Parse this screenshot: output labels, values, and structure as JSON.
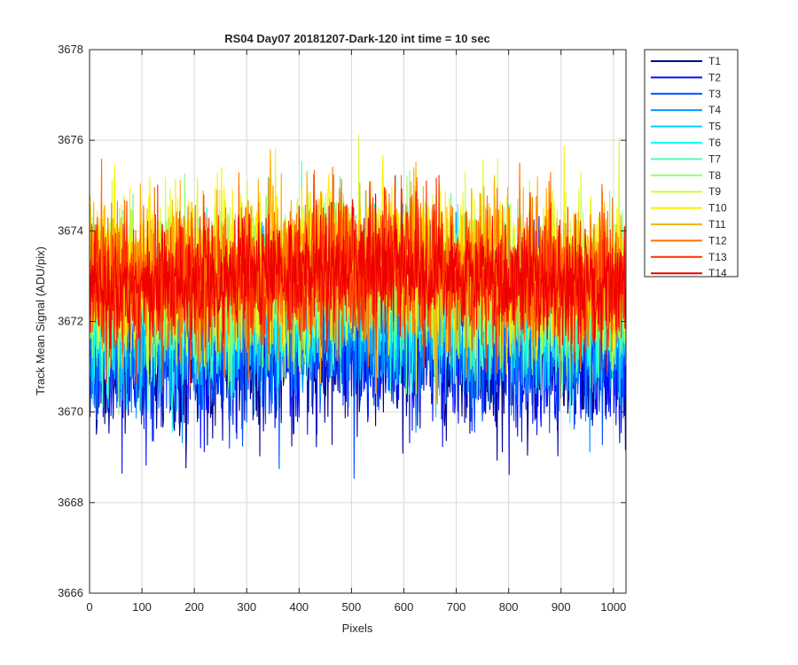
{
  "chart_data": {
    "type": "line",
    "title": "RS04 Day07 20181207-Dark-120 int time = 10 sec",
    "xlabel": "Pixels",
    "ylabel": "Track Mean Signal (ADU/pix)",
    "xlim": [
      0,
      1024
    ],
    "ylim": [
      3666,
      3678
    ],
    "xticks": [
      0,
      100,
      200,
      300,
      400,
      500,
      600,
      700,
      800,
      900,
      1000
    ],
    "yticks": [
      3666,
      3668,
      3670,
      3672,
      3674,
      3676,
      3678
    ],
    "grid": true,
    "legend_position": "outside-top-right",
    "series": [
      {
        "name": "T1",
        "color": "#00008f",
        "mean": 3671.0,
        "noise": 0.8
      },
      {
        "name": "T2",
        "color": "#0010ff",
        "mean": 3671.2,
        "noise": 0.8
      },
      {
        "name": "T3",
        "color": "#0050ff",
        "mean": 3671.4,
        "noise": 0.8
      },
      {
        "name": "T4",
        "color": "#0090ff",
        "mean": 3671.7,
        "noise": 0.8
      },
      {
        "name": "T5",
        "color": "#00d0ff",
        "mean": 3672.0,
        "noise": 0.8
      },
      {
        "name": "T6",
        "color": "#10ffef",
        "mean": 3672.2,
        "noise": 0.8
      },
      {
        "name": "T7",
        "color": "#50ffaf",
        "mean": 3672.4,
        "noise": 0.8
      },
      {
        "name": "T8",
        "color": "#90ff6f",
        "mean": 3672.6,
        "noise": 0.8
      },
      {
        "name": "T9",
        "color": "#d0ff2f",
        "mean": 3672.9,
        "noise": 0.85
      },
      {
        "name": "T10",
        "color": "#ffef00",
        "mean": 3673.1,
        "noise": 0.85
      },
      {
        "name": "T11",
        "color": "#ffaf00",
        "mean": 3673.0,
        "noise": 0.85
      },
      {
        "name": "T12",
        "color": "#ff7000",
        "mean": 3672.9,
        "noise": 0.8
      },
      {
        "name": "T13",
        "color": "#ff3000",
        "mean": 3672.8,
        "noise": 0.8
      },
      {
        "name": "T14",
        "color": "#ef0000",
        "mean": 3672.8,
        "noise": 0.6
      }
    ],
    "noise_model": "per-pixel values are noisy; each series is stored as mean level and noise amplitude (ADU)"
  }
}
